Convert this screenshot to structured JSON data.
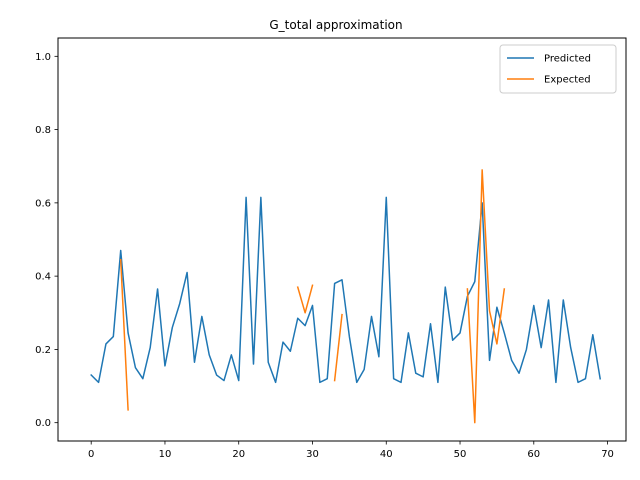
{
  "chart_data": {
    "type": "line",
    "title": "G_total approximation",
    "xlabel": "",
    "ylabel": "",
    "xlim": [
      -4.5,
      72.5
    ],
    "ylim": [
      -0.05,
      1.05
    ],
    "xticks": [
      0,
      10,
      20,
      30,
      40,
      50,
      60,
      70
    ],
    "yticks": [
      0.0,
      0.2,
      0.4,
      0.6,
      0.8,
      1.0
    ],
    "xtick_labels": [
      "0",
      "10",
      "20",
      "30",
      "40",
      "50",
      "60",
      "70"
    ],
    "ytick_labels": [
      "0.0",
      "0.2",
      "0.4",
      "0.6",
      "0.8",
      "1.0"
    ],
    "grid": false,
    "legend_position": "top-right",
    "series": [
      {
        "name": "Predicted",
        "color": "#1f77b4",
        "segments": [
          {
            "x": [
              0,
              1,
              2,
              3,
              4,
              5,
              6,
              7,
              8,
              9,
              10,
              11,
              12,
              13,
              14,
              15,
              16,
              17,
              18,
              19,
              20,
              21,
              22,
              23,
              24,
              25,
              26,
              27,
              28,
              29,
              30,
              31,
              32,
              33,
              34,
              35,
              36,
              37,
              38,
              39,
              40,
              41,
              42,
              43,
              44,
              45,
              46,
              47,
              48,
              49,
              50,
              51,
              52,
              53,
              54,
              55,
              56,
              57,
              58,
              59,
              60,
              61,
              62,
              63,
              64,
              65,
              66,
              67,
              68,
              69
            ],
            "y": [
              0.13,
              0.11,
              0.215,
              0.235,
              0.47,
              0.245,
              0.15,
              0.12,
              0.205,
              0.365,
              0.155,
              0.26,
              0.325,
              0.41,
              0.165,
              0.29,
              0.185,
              0.13,
              0.115,
              0.185,
              0.115,
              0.615,
              0.16,
              0.615,
              0.165,
              0.11,
              0.22,
              0.195,
              0.285,
              0.265,
              0.32,
              0.11,
              0.12,
              0.38,
              0.39,
              0.235,
              0.11,
              0.145,
              0.29,
              0.18,
              0.615,
              0.12,
              0.11,
              0.245,
              0.135,
              0.125,
              0.27,
              0.11,
              0.37,
              0.225,
              0.245,
              0.345,
              0.385,
              0.6,
              0.17,
              0.315,
              0.245,
              0.17,
              0.135,
              0.2,
              0.32,
              0.205,
              0.335,
              0.11,
              0.335,
              0.205,
              0.11,
              0.12,
              0.24,
              0.12
            ]
          }
        ]
      },
      {
        "name": "Expected",
        "color": "#ff7f0e",
        "segments": [
          {
            "x": [
              4,
              5
            ],
            "y": [
              0.445,
              0.035
            ]
          },
          {
            "x": [
              28,
              29,
              30
            ],
            "y": [
              0.37,
              0.3,
              0.375
            ]
          },
          {
            "x": [
              33,
              34
            ],
            "y": [
              0.115,
              0.295
            ]
          },
          {
            "x": [
              51,
              52,
              53,
              54,
              55,
              56
            ],
            "y": [
              0.365,
              0.0,
              0.69,
              0.305,
              0.215,
              0.365
            ]
          }
        ]
      }
    ]
  }
}
